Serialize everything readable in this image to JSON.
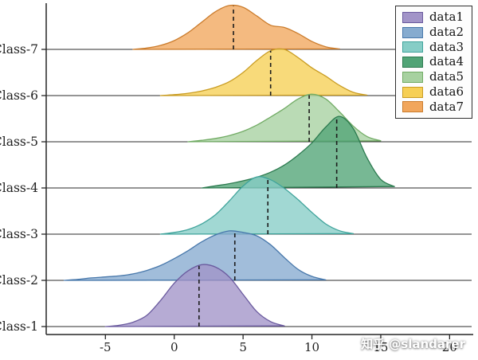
{
  "watermark": {
    "text": "知乎 @slandarer"
  },
  "chart_data": {
    "type": "area",
    "subtype": "ridgeline-density",
    "title": "",
    "xlabel": "",
    "ylabel": "",
    "grid": false,
    "x_ticks": [
      -5,
      0,
      5,
      10,
      15,
      20
    ],
    "x_range": [
      -9.3,
      21.6
    ],
    "categories": [
      "Class-1",
      "Class-2",
      "Class-3",
      "Class-4",
      "Class-5",
      "Class-6",
      "Class-7"
    ],
    "legend": {
      "position": "top-right",
      "items": [
        {
          "label": "data1",
          "color": "#a294c8",
          "edge": "#6a5a9e"
        },
        {
          "label": "data2",
          "color": "#86abcf",
          "edge": "#4878ab"
        },
        {
          "label": "data3",
          "color": "#86cdc6",
          "edge": "#3fa39b"
        },
        {
          "label": "data4",
          "color": "#51a476",
          "edge": "#2c7a4f"
        },
        {
          "label": "data5",
          "color": "#a7d1a0",
          "edge": "#71ab64"
        },
        {
          "label": "data6",
          "color": "#f6cf55",
          "edge": "#c99c22"
        },
        {
          "label": "data7",
          "color": "#f1a65c",
          "edge": "#cb7c2c"
        }
      ]
    },
    "series": [
      {
        "name": "data1",
        "category": "Class-1",
        "fill": "#a294c8",
        "edge": "#6a5a9e",
        "median": 1.8,
        "amplitude": 1.34,
        "x": [
          -5,
          -4,
          -3,
          -2,
          -1,
          0,
          1,
          2,
          3,
          4,
          5,
          6,
          7,
          8
        ],
        "density": [
          0,
          0.02,
          0.07,
          0.18,
          0.42,
          0.7,
          0.9,
          1.0,
          0.96,
          0.8,
          0.52,
          0.24,
          0.08,
          0.01
        ]
      },
      {
        "name": "data2",
        "category": "Class-2",
        "fill": "#86abcf",
        "edge": "#4878ab",
        "median": 4.4,
        "amplitude": 1.07,
        "x": [
          -8,
          -7,
          -6,
          -5,
          -4,
          -3,
          -2,
          -1,
          0,
          1,
          2,
          3,
          4,
          5,
          6,
          7,
          8,
          9,
          10,
          11
        ],
        "density": [
          0,
          0.02,
          0.05,
          0.07,
          0.09,
          0.13,
          0.2,
          0.3,
          0.44,
          0.6,
          0.78,
          0.92,
          1.0,
          0.97,
          0.9,
          0.72,
          0.46,
          0.22,
          0.08,
          0.01
        ]
      },
      {
        "name": "data3",
        "category": "Class-3",
        "fill": "#86cdc6",
        "edge": "#3fa39b",
        "median": 6.8,
        "amplitude": 1.24,
        "x": [
          -1,
          0,
          1,
          2,
          3,
          4,
          5,
          6,
          7,
          8,
          9,
          10,
          11,
          12,
          13
        ],
        "density": [
          0,
          0.03,
          0.08,
          0.18,
          0.34,
          0.58,
          0.84,
          1.0,
          0.95,
          0.8,
          0.6,
          0.38,
          0.18,
          0.06,
          0.01
        ]
      },
      {
        "name": "data4",
        "category": "Class-4",
        "fill": "#51a476",
        "edge": "#2c7a4f",
        "median": 11.8,
        "amplitude": 1.55,
        "x": [
          2,
          3,
          4,
          5,
          6,
          7,
          8,
          9,
          10,
          11,
          12,
          13,
          14,
          15,
          16
        ],
        "density": [
          0,
          0.03,
          0.06,
          0.1,
          0.15,
          0.22,
          0.32,
          0.46,
          0.63,
          0.85,
          1.0,
          0.83,
          0.42,
          0.12,
          0.02
        ]
      },
      {
        "name": "data5",
        "category": "Class-5",
        "fill": "#a7d1a0",
        "edge": "#71ab64",
        "median": 9.8,
        "amplitude": 1.03,
        "x": [
          1,
          2,
          3,
          4,
          5,
          6,
          7,
          8,
          9,
          10,
          11,
          12,
          13,
          14,
          15
        ],
        "density": [
          0,
          0.03,
          0.07,
          0.13,
          0.22,
          0.35,
          0.52,
          0.7,
          0.9,
          1.0,
          0.9,
          0.63,
          0.33,
          0.11,
          0.02
        ]
      },
      {
        "name": "data6",
        "category": "Class-6",
        "fill": "#f6cf55",
        "edge": "#c99c22",
        "median": 7.0,
        "amplitude": 1.0,
        "x": [
          -1,
          0,
          1,
          2,
          3,
          4,
          5,
          6,
          7,
          8,
          9,
          10,
          11,
          12,
          13,
          14
        ],
        "density": [
          0,
          0.02,
          0.05,
          0.1,
          0.18,
          0.3,
          0.5,
          0.76,
          0.97,
          1.0,
          0.82,
          0.6,
          0.42,
          0.22,
          0.07,
          0.01
        ]
      },
      {
        "name": "data7",
        "category": "Class-7",
        "fill": "#f1a65c",
        "edge": "#cb7c2c",
        "median": 4.3,
        "amplitude": 0.95,
        "x": [
          -3,
          -2,
          -1,
          0,
          1,
          2,
          3,
          4,
          5,
          6,
          7,
          8,
          9,
          10,
          11,
          12
        ],
        "density": [
          0,
          0.03,
          0.09,
          0.2,
          0.38,
          0.62,
          0.86,
          1.0,
          0.96,
          0.76,
          0.55,
          0.5,
          0.36,
          0.18,
          0.06,
          0.01
        ]
      }
    ],
    "style": {
      "fill_opacity": 0.78,
      "baseline_color": "#2b2b2b",
      "median_line_color": "#1c1c1c",
      "axis_color": "#262626",
      "label_color": "#1f1f1f"
    }
  }
}
